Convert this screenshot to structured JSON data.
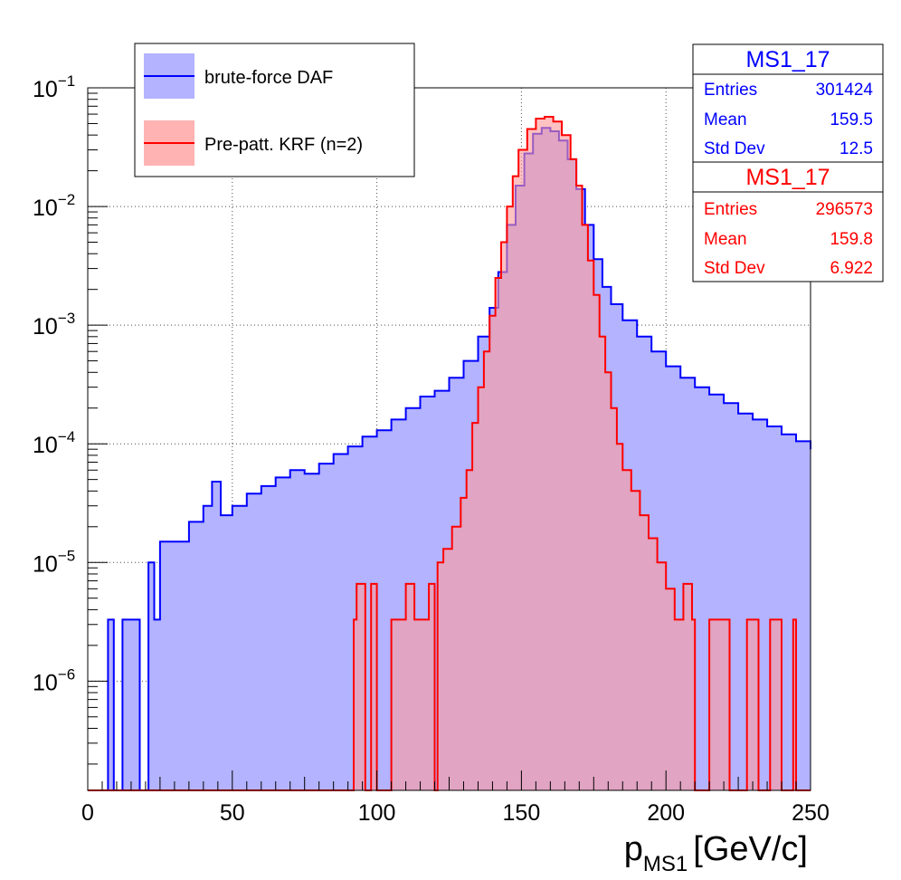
{
  "chart_data": {
    "type": "histogram",
    "xlabel_main": "p",
    "xlabel_sub": "MS1",
    "xlabel_unit": "[GeV/c]",
    "xlim": [
      0,
      250
    ],
    "ylim": [
      1.2e-07,
      0.1
    ],
    "y_scale": "log",
    "grid": true,
    "x_ticks": [
      0,
      50,
      100,
      150,
      200,
      250
    ],
    "x_tick_labels": [
      "0",
      "50",
      "100",
      "150",
      "200",
      "250"
    ],
    "y_ticks": [
      {
        "value": 1e-06,
        "base": "10",
        "exp": "−6"
      },
      {
        "value": 1e-05,
        "base": "10",
        "exp": "−5"
      },
      {
        "value": 0.0001,
        "base": "10",
        "exp": "−4"
      },
      {
        "value": 0.001,
        "base": "10",
        "exp": "−3"
      },
      {
        "value": 0.01,
        "base": "10",
        "exp": "−2"
      },
      {
        "value": 0.1,
        "base": "10",
        "exp": "−1"
      }
    ],
    "legend_position": "top-left",
    "series": [
      {
        "name": "brute-force DAF",
        "line_color": "#0000ff",
        "fill_color": "#b3b3ff",
        "points": [
          [
            0,
            0
          ],
          [
            7,
            3.3e-06
          ],
          [
            9,
            0
          ],
          [
            12,
            3.3e-06
          ],
          [
            18,
            0
          ],
          [
            21,
            1e-05
          ],
          [
            23,
            3.3e-06
          ],
          [
            25,
            1.5e-05
          ],
          [
            30,
            1.5e-05
          ],
          [
            35,
            2.2e-05
          ],
          [
            40,
            3e-05
          ],
          [
            43,
            4.8e-05
          ],
          [
            46,
            2.5e-05
          ],
          [
            50,
            3e-05
          ],
          [
            55,
            3.8e-05
          ],
          [
            60,
            4.4e-05
          ],
          [
            65,
            5.2e-05
          ],
          [
            70,
            6e-05
          ],
          [
            75,
            5.6e-05
          ],
          [
            80,
            6.8e-05
          ],
          [
            85,
            8.2e-05
          ],
          [
            90,
            9.5e-05
          ],
          [
            95,
            0.000115
          ],
          [
            100,
            0.00013
          ],
          [
            105,
            0.00016
          ],
          [
            110,
            0.0002
          ],
          [
            115,
            0.00025
          ],
          [
            120,
            0.00028
          ],
          [
            125,
            0.00036
          ],
          [
            130,
            0.0005
          ],
          [
            135,
            0.0008
          ],
          [
            139,
            0.0014
          ],
          [
            142,
            0.0028
          ],
          [
            145,
            0.007
          ],
          [
            148,
            0.015
          ],
          [
            151,
            0.028
          ],
          [
            154,
            0.041
          ],
          [
            157,
            0.046
          ],
          [
            160,
            0.043
          ],
          [
            163,
            0.036
          ],
          [
            166,
            0.025
          ],
          [
            169,
            0.014
          ],
          [
            172,
            0.007
          ],
          [
            175,
            0.0036
          ],
          [
            178,
            0.0021
          ],
          [
            181,
            0.0015
          ],
          [
            185,
            0.0011
          ],
          [
            190,
            0.0008
          ],
          [
            195,
            0.0006
          ],
          [
            200,
            0.00045
          ],
          [
            205,
            0.00036
          ],
          [
            210,
            0.0003
          ],
          [
            215,
            0.00026
          ],
          [
            220,
            0.00022
          ],
          [
            225,
            0.00018
          ],
          [
            230,
            0.00016
          ],
          [
            235,
            0.00014
          ],
          [
            240,
            0.00012
          ],
          [
            245,
            0.000105
          ],
          [
            250,
            9e-05
          ]
        ]
      },
      {
        "name": "Pre-patt. KRF (n=2)",
        "line_color": "#ff0000",
        "fill_color": "#ff9999",
        "points": [
          [
            0,
            0
          ],
          [
            90,
            0
          ],
          [
            92,
            3.3e-06
          ],
          [
            93,
            6.6e-06
          ],
          [
            96,
            0
          ],
          [
            98,
            6.6e-06
          ],
          [
            100,
            0
          ],
          [
            105,
            3.3e-06
          ],
          [
            110,
            6.6e-06
          ],
          [
            113,
            3.3e-06
          ],
          [
            118,
            6.6e-06
          ],
          [
            120,
            0
          ],
          [
            121,
            1e-05
          ],
          [
            123,
            1.3e-05
          ],
          [
            126,
            2e-05
          ],
          [
            129,
            3.5e-05
          ],
          [
            131,
            6e-05
          ],
          [
            133,
            0.00015
          ],
          [
            135,
            0.0003
          ],
          [
            137,
            0.0006
          ],
          [
            139,
            0.0012
          ],
          [
            141,
            0.0025
          ],
          [
            143,
            0.005
          ],
          [
            145,
            0.01
          ],
          [
            147,
            0.018
          ],
          [
            149,
            0.03
          ],
          [
            152,
            0.045
          ],
          [
            155,
            0.055
          ],
          [
            158,
            0.057
          ],
          [
            161,
            0.052
          ],
          [
            164,
            0.04
          ],
          [
            167,
            0.025
          ],
          [
            169,
            0.015
          ],
          [
            171,
            0.007
          ],
          [
            173,
            0.0035
          ],
          [
            175,
            0.0018
          ],
          [
            177,
            0.0008
          ],
          [
            179,
            0.0004
          ],
          [
            181,
            0.0002
          ],
          [
            183,
            0.0001
          ],
          [
            185,
            6e-05
          ],
          [
            188,
            4e-05
          ],
          [
            191,
            2.5e-05
          ],
          [
            194,
            1.6e-05
          ],
          [
            197,
            1e-05
          ],
          [
            200,
            6e-06
          ],
          [
            203,
            3.3e-06
          ],
          [
            206,
            6.6e-06
          ],
          [
            209,
            3.3e-06
          ],
          [
            210,
            0
          ],
          [
            215,
            3.3e-06
          ],
          [
            222,
            0
          ],
          [
            228,
            3.3e-06
          ],
          [
            232,
            0
          ],
          [
            236,
            3.3e-06
          ],
          [
            240,
            0
          ],
          [
            244,
            3.3e-06
          ],
          [
            245,
            0
          ],
          [
            250,
            0
          ]
        ]
      }
    ],
    "stats_boxes": [
      {
        "title": "MS1_17",
        "color": "#0000ff",
        "rows": [
          {
            "label": "Entries",
            "value": "301424"
          },
          {
            "label": "Mean",
            "value": "159.5"
          },
          {
            "label": "Std Dev",
            "value": "12.5"
          }
        ]
      },
      {
        "title": "MS1_17",
        "color": "#ff0000",
        "rows": [
          {
            "label": "Entries",
            "value": "296573"
          },
          {
            "label": "Mean",
            "value": "159.8"
          },
          {
            "label": "Std Dev",
            "value": "6.922"
          }
        ]
      }
    ]
  }
}
